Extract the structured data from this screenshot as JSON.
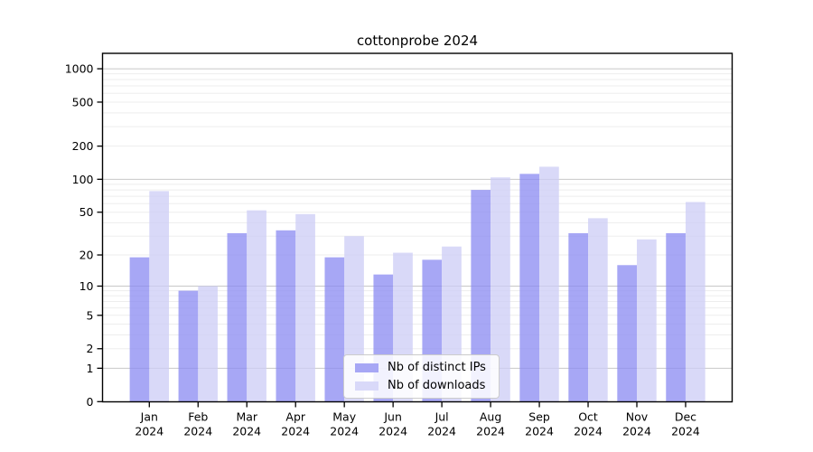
{
  "chart_data": {
    "type": "bar",
    "title": "cottonprobe 2024",
    "categories": [
      "Jan",
      "Feb",
      "Mar",
      "Apr",
      "May",
      "Jun",
      "Jul",
      "Aug",
      "Sep",
      "Oct",
      "Nov",
      "Dec"
    ],
    "x_year_label": "2024",
    "series": [
      {
        "name": "Nb of distinct IPs",
        "color": "#a7a7f5",
        "fill": "rgba(138,138,242,0.75)",
        "values": [
          19,
          9,
          32,
          34,
          19,
          13,
          18,
          80,
          112,
          32,
          16,
          32
        ]
      },
      {
        "name": "Nb of downloads",
        "color": "#d9d9f9",
        "fill": "rgba(204,204,246,0.75)",
        "values": [
          78,
          10,
          52,
          48,
          30,
          21,
          24,
          104,
          130,
          44,
          28,
          62
        ]
      }
    ],
    "xlabel": "",
    "ylabel": "",
    "yscale": "log1p",
    "yticks": [
      0,
      1,
      2,
      5,
      10,
      20,
      50,
      100,
      200,
      500,
      1000
    ],
    "ylim": [
      0,
      1380
    ],
    "grid": {
      "enabled": true,
      "major_color": "#c8c8c8",
      "minor_color": "#ededed"
    },
    "axis_color": "#000000",
    "legend_location": "lower center"
  }
}
